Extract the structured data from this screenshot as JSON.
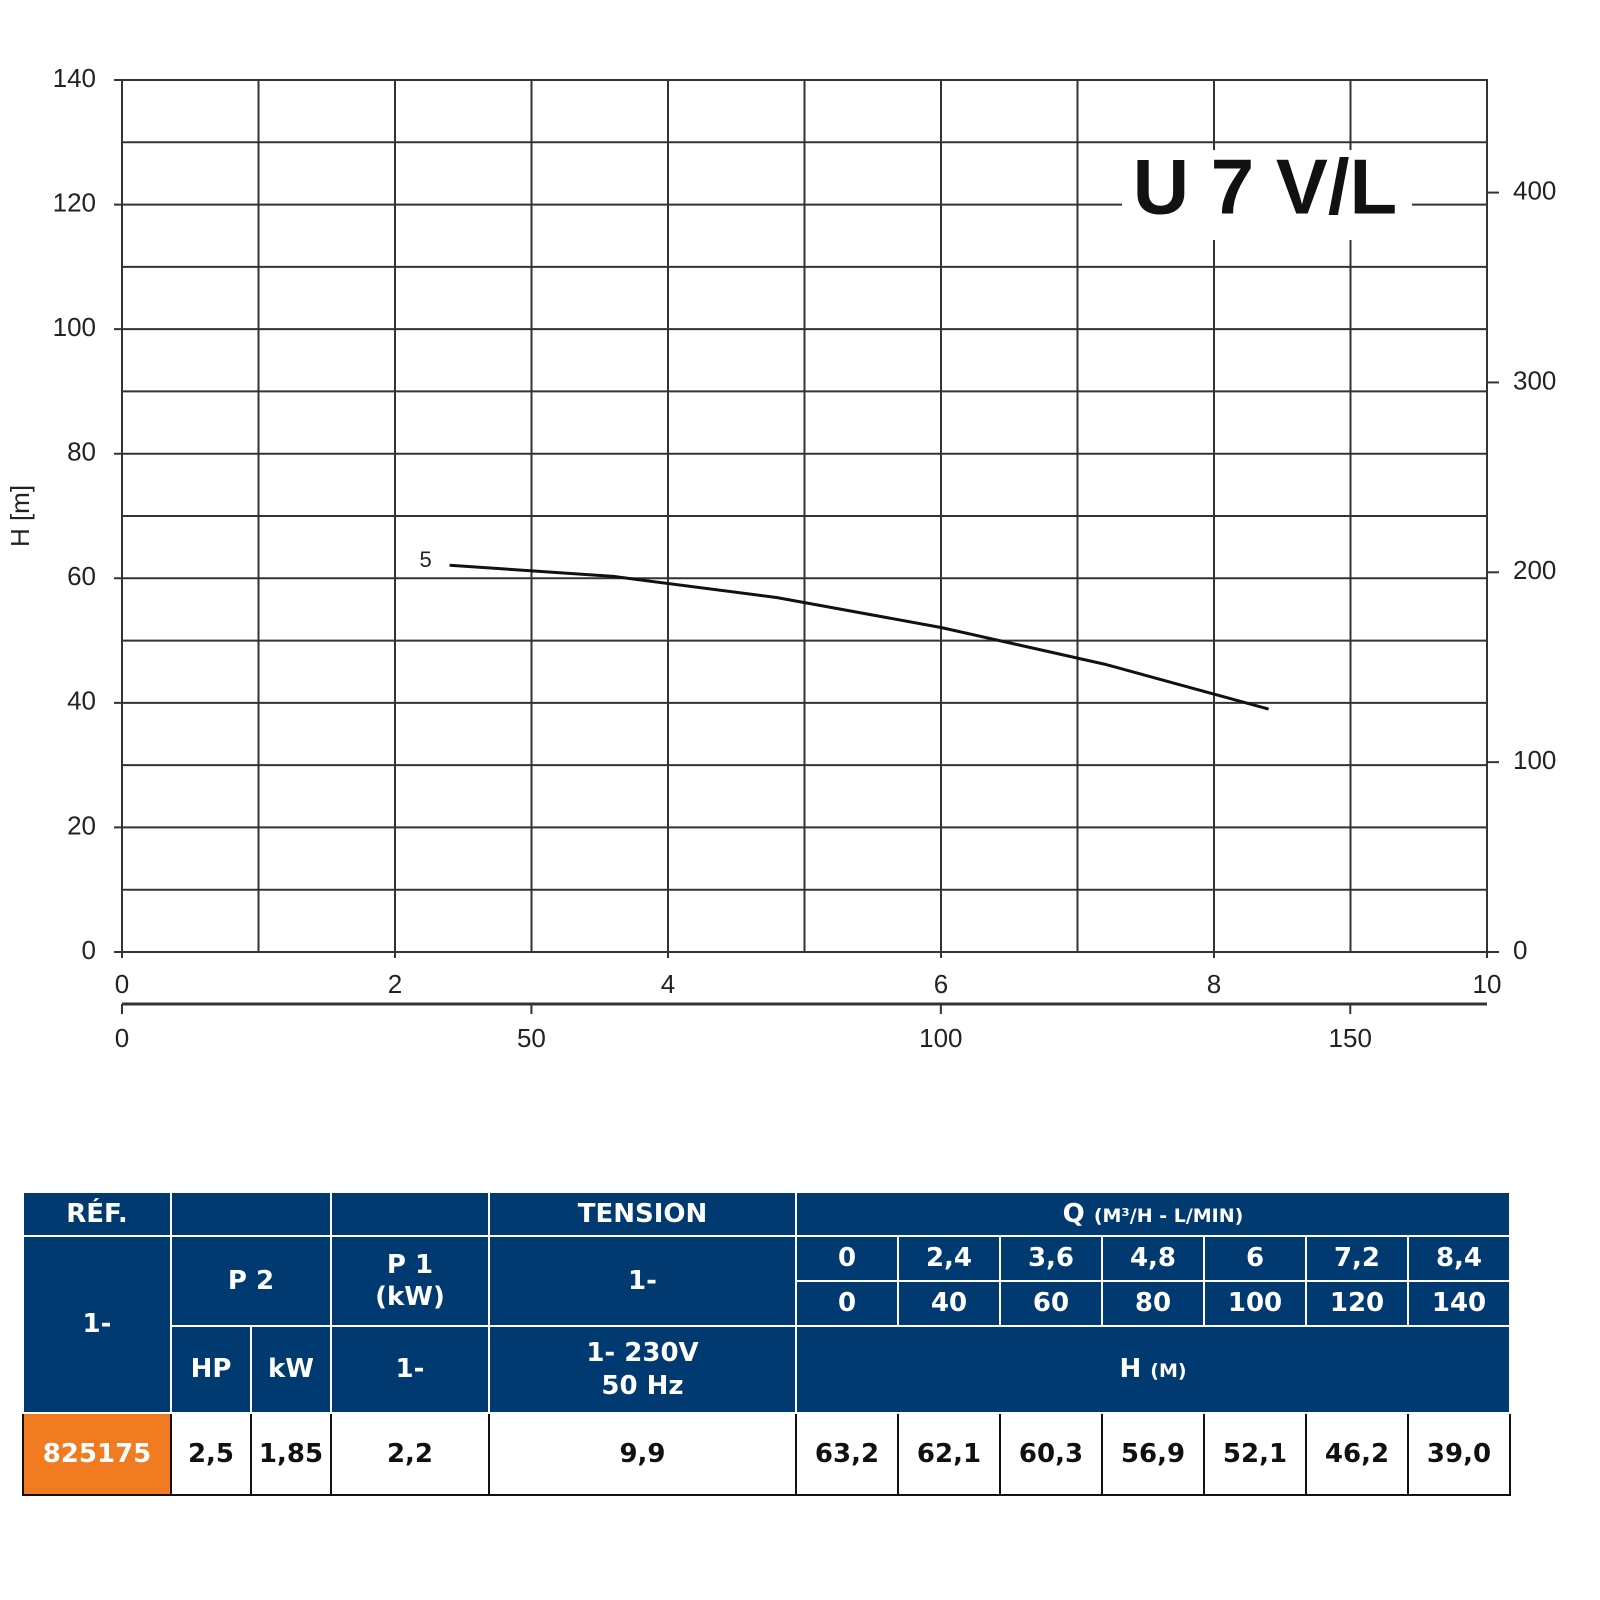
{
  "chart_data": {
    "type": "line",
    "title": "U 7 V/L",
    "y_label": "H [m]",
    "xlim": [
      0,
      10
    ],
    "xticks": [
      0,
      2,
      4,
      6,
      8,
      10
    ],
    "minor_xticks": [
      1,
      3,
      5,
      7,
      9
    ],
    "ylim": [
      0,
      140
    ],
    "yticks": [
      0,
      20,
      40,
      60,
      80,
      100,
      120,
      140
    ],
    "minor_yticks": [
      10,
      30,
      50,
      70,
      90,
      110,
      130
    ],
    "y2lim": [
      0,
      459.3
    ],
    "y2ticks": [
      0,
      100,
      200,
      300,
      400
    ],
    "x2lim": [
      0,
      166.7
    ],
    "x2ticks": [
      0,
      50,
      100,
      150
    ],
    "grid": true,
    "series": [
      {
        "name": "5",
        "color": "#111111",
        "x": [
          2.4,
          3.6,
          4.8,
          6,
          7.2,
          8.4
        ],
        "values": [
          62.1,
          60.3,
          56.9,
          52.1,
          46.2,
          39.0
        ]
      }
    ]
  },
  "table": {
    "ref": "RÉF.",
    "tension": "TENSION",
    "q": "Q",
    "q_unit": "(M³/H - L/MIN)",
    "ref_phase": "1-",
    "p2": "P 2",
    "p1": [
      "P 1",
      "(kW)"
    ],
    "tension_phase": "1-",
    "q_m3h": [
      "0",
      "2,4",
      "3,6",
      "4,8",
      "6",
      "7,2",
      "8,4"
    ],
    "q_lmin": [
      "0",
      "40",
      "60",
      "80",
      "100",
      "120",
      "140"
    ],
    "hp": "HP",
    "kw": "kW",
    "p1_phase": "1-",
    "voltage": [
      "1- 230V",
      "50 Hz"
    ],
    "h": "H",
    "h_unit": "(M)",
    "rows": [
      [
        "825175",
        "2,5",
        "1,85",
        "2,2",
        "9,9",
        "63,2",
        "62,1",
        "60,3",
        "56,9",
        "52,1",
        "46,2",
        "39,0"
      ]
    ]
  }
}
